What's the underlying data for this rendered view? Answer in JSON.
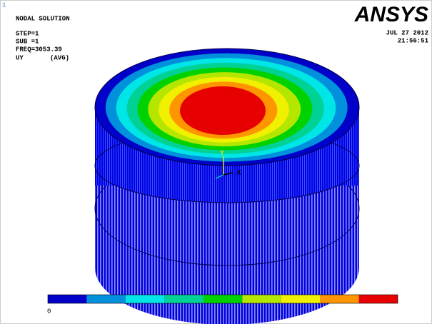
{
  "header": {
    "window_number": "1",
    "title": "NODAL SOLUTION",
    "step": "STEP=1",
    "sub": "SUB =1",
    "freq": "FREQ=3053.39",
    "result": "UY",
    "avg": "(AVG)",
    "logo": "ANSYS",
    "date": "JUL 27 2012",
    "time": "21:56:51"
  },
  "triad": {
    "x": "X",
    "y": "Y"
  },
  "legend": {
    "colors": [
      "#0000c8",
      "#0090dc",
      "#00e6e6",
      "#00d296",
      "#00d200",
      "#b4e600",
      "#f0f000",
      "#ff9600",
      "#e60000"
    ],
    "min_label": "0"
  }
}
